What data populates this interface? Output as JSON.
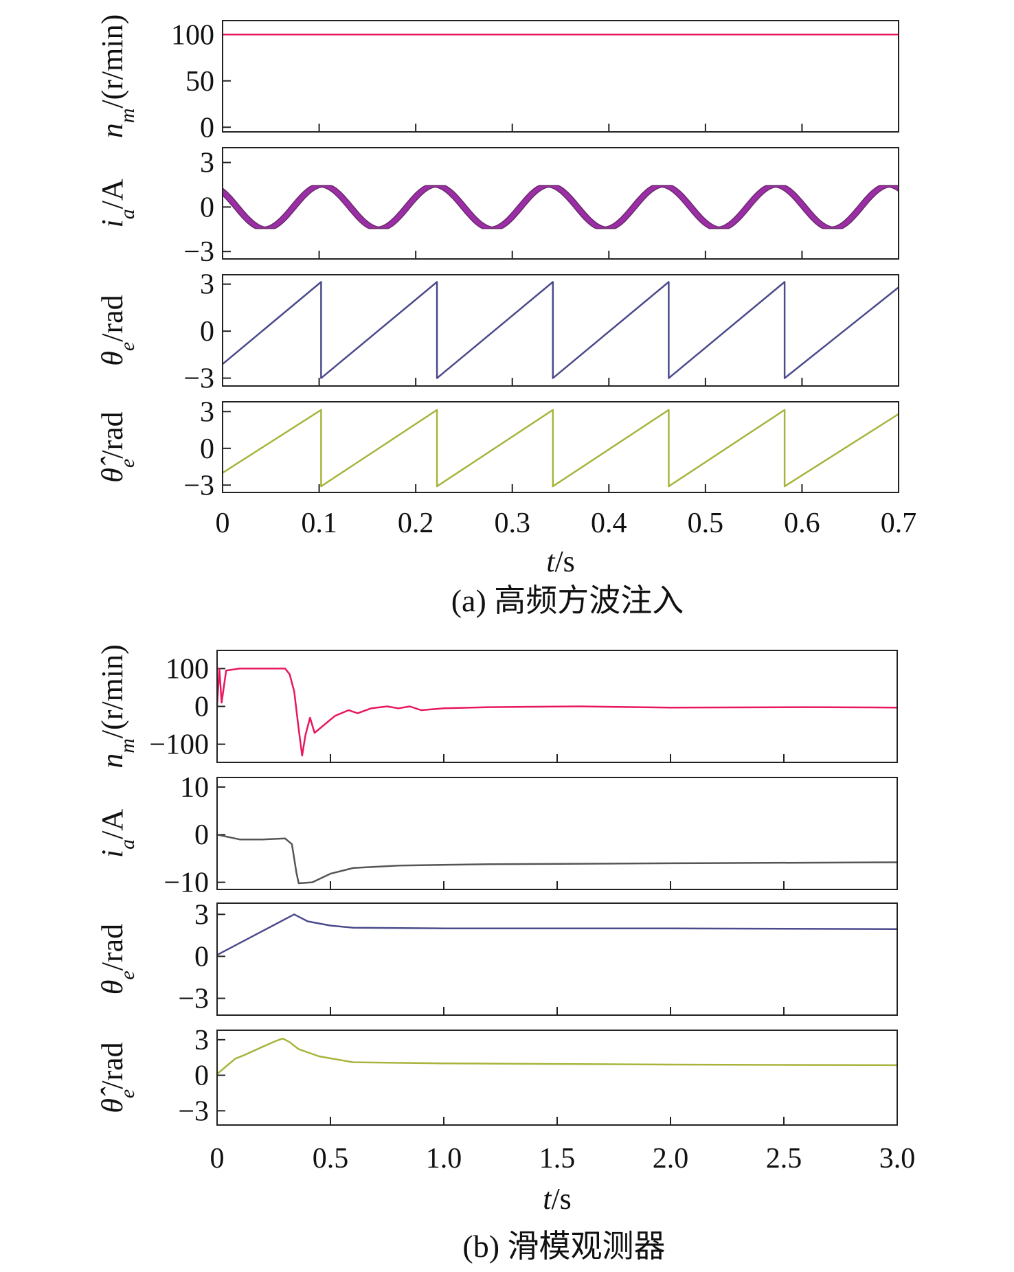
{
  "chart_data": [
    {
      "id": "a",
      "type": "line",
      "caption": "(a) 高频方波注入",
      "xlabel": "t/s",
      "xlim": [
        0,
        0.7
      ],
      "xticks": [
        "0",
        "0.1",
        "0.2",
        "0.3",
        "0.4",
        "0.5",
        "0.6",
        "0.7"
      ],
      "panels": [
        {
          "ylabel": "n_m/(r/min)",
          "ylim": [
            -5,
            115
          ],
          "yticks": [
            {
              "v": 0,
              "t": "0"
            },
            {
              "v": 50,
              "t": "50"
            },
            {
              "v": 100,
              "t": "100"
            }
          ],
          "series": [
            {
              "color": "#e8175d",
              "points": [
                [
                  0,
                  100
                ],
                [
                  0.7,
                  100
                ]
              ]
            }
          ]
        },
        {
          "ylabel": "i_a/A",
          "ylim": [
            -3.5,
            4
          ],
          "yticks": [
            {
              "v": -3,
              "t": "−3"
            },
            {
              "v": 0,
              "t": "0"
            },
            {
              "v": 3,
              "t": "3"
            }
          ],
          "band": {
            "color": "#9b2ea6",
            "edge": "#6a2a6a",
            "amplitude": 1.45,
            "band_width": 0.6,
            "period": 0.1175,
            "phase_deg": 45,
            "t0": 0.0,
            "t1": 0.7
          }
        },
        {
          "ylabel": "θ_e/rad",
          "ylim": [
            -3.5,
            3.6
          ],
          "yticks": [
            {
              "v": -3,
              "t": "−3"
            },
            {
              "v": 0,
              "t": "0"
            },
            {
              "v": 3,
              "t": "3"
            }
          ],
          "series": [
            {
              "color": "#4a4a8c",
              "points": [
                [
                  0,
                  -2.1
                ],
                [
                  0.102,
                  3.14
                ],
                [
                  0.102,
                  -3.0
                ],
                [
                  0.222,
                  3.14
                ],
                [
                  0.222,
                  -3.0
                ],
                [
                  0.342,
                  3.14
                ],
                [
                  0.342,
                  -3.0
                ],
                [
                  0.462,
                  3.14
                ],
                [
                  0.462,
                  -3.0
                ],
                [
                  0.582,
                  3.14
                ],
                [
                  0.582,
                  -3.0
                ],
                [
                  0.7,
                  2.8
                ]
              ]
            }
          ]
        },
        {
          "ylabel": "θ̂_e/rad",
          "ylim": [
            -3.6,
            3.8
          ],
          "yticks": [
            {
              "v": -3,
              "t": "−3"
            },
            {
              "v": 0,
              "t": "0"
            },
            {
              "v": 3,
              "t": "3"
            }
          ],
          "series": [
            {
              "color": "#a8b43c",
              "points": [
                [
                  0,
                  -2.0
                ],
                [
                  0.102,
                  3.14
                ],
                [
                  0.102,
                  -3.1
                ],
                [
                  0.222,
                  3.14
                ],
                [
                  0.222,
                  -3.1
                ],
                [
                  0.342,
                  3.14
                ],
                [
                  0.342,
                  -3.1
                ],
                [
                  0.462,
                  3.14
                ],
                [
                  0.462,
                  -3.1
                ],
                [
                  0.582,
                  3.14
                ],
                [
                  0.582,
                  -3.1
                ],
                [
                  0.7,
                  2.8
                ]
              ]
            }
          ]
        }
      ]
    },
    {
      "id": "b",
      "type": "line",
      "caption": "(b) 滑模观测器",
      "xlabel": "t/s",
      "xlim": [
        0,
        3.0
      ],
      "xticks": [
        "0",
        "0.5",
        "1.0",
        "1.5",
        "2.0",
        "2.5",
        "3.0"
      ],
      "panels": [
        {
          "ylabel": "n_m/(r/min)",
          "ylim": [
            -148,
            148
          ],
          "yticks": [
            {
              "v": -100,
              "t": "−100"
            },
            {
              "v": 0,
              "t": "0"
            },
            {
              "v": 100,
              "t": "100"
            }
          ],
          "series": [
            {
              "color": "#e8175d",
              "points": [
                [
                  0,
                  0
                ],
                [
                  0.01,
                  100
                ],
                [
                  0.02,
                  10
                ],
                [
                  0.04,
                  95
                ],
                [
                  0.1,
                  100
                ],
                [
                  0.3,
                  100
                ],
                [
                  0.32,
                  85
                ],
                [
                  0.34,
                  40
                ],
                [
                  0.36,
                  -60
                ],
                [
                  0.375,
                  -130
                ],
                [
                  0.39,
                  -75
                ],
                [
                  0.41,
                  -30
                ],
                [
                  0.43,
                  -70
                ],
                [
                  0.47,
                  -50
                ],
                [
                  0.52,
                  -25
                ],
                [
                  0.58,
                  -10
                ],
                [
                  0.62,
                  -18
                ],
                [
                  0.68,
                  -5
                ],
                [
                  0.75,
                  0
                ],
                [
                  0.8,
                  -5
                ],
                [
                  0.85,
                  0
                ],
                [
                  0.9,
                  -10
                ],
                [
                  1.0,
                  -5
                ],
                [
                  1.2,
                  -2
                ],
                [
                  1.6,
                  0
                ],
                [
                  2.0,
                  -3
                ],
                [
                  2.6,
                  -2
                ],
                [
                  3.0,
                  -3
                ]
              ]
            }
          ]
        },
        {
          "ylabel": "i_a/A",
          "ylim": [
            -11.5,
            12
          ],
          "yticks": [
            {
              "v": -10,
              "t": "−10"
            },
            {
              "v": 0,
              "t": "0"
            },
            {
              "v": 10,
              "t": "10"
            }
          ],
          "series": [
            {
              "color": "#555555",
              "points": [
                [
                  0,
                  0
                ],
                [
                  0.1,
                  -1.0
                ],
                [
                  0.2,
                  -1.0
                ],
                [
                  0.3,
                  -0.8
                ],
                [
                  0.33,
                  -2.0
                ],
                [
                  0.35,
                  -8.0
                ],
                [
                  0.36,
                  -10.2
                ],
                [
                  0.42,
                  -10.0
                ],
                [
                  0.5,
                  -8.2
                ],
                [
                  0.6,
                  -7.0
                ],
                [
                  0.8,
                  -6.5
                ],
                [
                  1.2,
                  -6.2
                ],
                [
                  2.0,
                  -6.0
                ],
                [
                  3.0,
                  -5.8
                ]
              ]
            }
          ]
        },
        {
          "ylabel": "θ_e/rad",
          "ylim": [
            -4.2,
            3.8
          ],
          "yticks": [
            {
              "v": -3,
              "t": "−3"
            },
            {
              "v": 0,
              "t": "0"
            },
            {
              "v": 3,
              "t": "3"
            }
          ],
          "series": [
            {
              "color": "#4a4a8c",
              "points": [
                [
                  0,
                  0.1
                ],
                [
                  0.34,
                  3.0
                ],
                [
                  0.4,
                  2.5
                ],
                [
                  0.5,
                  2.2
                ],
                [
                  0.6,
                  2.05
                ],
                [
                  1.0,
                  2.0
                ],
                [
                  2.0,
                  2.0
                ],
                [
                  3.0,
                  1.95
                ]
              ]
            }
          ]
        },
        {
          "ylabel": "θ̂_e/rad",
          "ylim": [
            -4.2,
            3.8
          ],
          "yticks": [
            {
              "v": -3,
              "t": "−3"
            },
            {
              "v": 0,
              "t": "0"
            },
            {
              "v": 3,
              "t": "3"
            }
          ],
          "series": [
            {
              "color": "#a8b43c",
              "points": [
                [
                  0,
                  0.1
                ],
                [
                  0.08,
                  1.4
                ],
                [
                  0.12,
                  1.7
                ],
                [
                  0.2,
                  2.4
                ],
                [
                  0.26,
                  2.9
                ],
                [
                  0.29,
                  3.1
                ],
                [
                  0.32,
                  2.8
                ],
                [
                  0.36,
                  2.2
                ],
                [
                  0.45,
                  1.6
                ],
                [
                  0.6,
                  1.1
                ],
                [
                  1.0,
                  1.0
                ],
                [
                  2.0,
                  0.9
                ],
                [
                  3.0,
                  0.85
                ]
              ]
            }
          ]
        }
      ]
    }
  ]
}
